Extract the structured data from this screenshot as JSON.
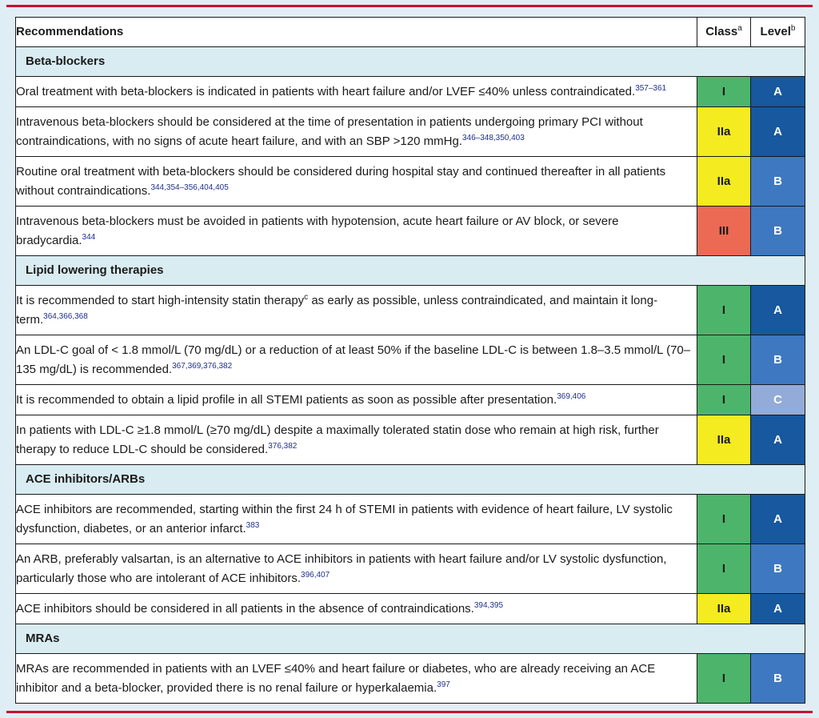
{
  "header": {
    "recommendations": "Recommendations",
    "class": "Class",
    "class_sup": "a",
    "level": "Level",
    "level_sup": "b"
  },
  "colors": {
    "class_I": "#4db46b",
    "class_IIa": "#f4eb21",
    "class_III": "#ec6a53",
    "level_A": "#17589e",
    "level_B": "#3e78c0",
    "level_C": "#93abd8",
    "section_bg": "#d9ecf2",
    "rule": "#c8102e"
  },
  "sections": [
    {
      "title": "Beta-blockers",
      "rows": [
        {
          "text": "Oral treatment with beta-blockers is indicated in patients with heart failure and/or LVEF ≤40% unless contraindicated.",
          "refs": "357–361",
          "class": "I",
          "level": "A"
        },
        {
          "text": "Intravenous beta-blockers should be considered at the time of presentation in patients undergoing primary PCI without contraindications, with no signs of acute heart failure, and with an SBP >120 mmHg.",
          "refs": "346–348,350,403",
          "class": "IIa",
          "level": "A"
        },
        {
          "text": "Routine oral treatment with beta-blockers should be considered during hospital stay and continued thereafter in all patients without contraindications.",
          "refs": "344,354–356,404,405",
          "class": "IIa",
          "level": "B"
        },
        {
          "text": "Intravenous beta-blockers must be avoided in patients with hypotension, acute heart failure or AV block, or severe bradycardia.",
          "refs": "344",
          "class": "III",
          "level": "B"
        }
      ]
    },
    {
      "title": "Lipid lowering therapies",
      "rows": [
        {
          "text_a": "It is recommended to start high-intensity statin therapy",
          "note": "c",
          "text_b": " as early as possible, unless contraindicated, and maintain it long-term.",
          "refs": "364,366,368",
          "class": "I",
          "level": "A"
        },
        {
          "text": "An LDL-C goal of < 1.8 mmol/L (70 mg/dL) or a reduction of at least 50% if the baseline LDL-C is between 1.8–3.5 mmol/L (70–135 mg/dL) is recommended.",
          "refs": "367,369,376,382",
          "class": "I",
          "level": "B"
        },
        {
          "text": "It is recommended to obtain a lipid profile in all STEMI patients as soon as possible after presentation.",
          "refs": "369,406",
          "class": "I",
          "level": "C"
        },
        {
          "text": "In patients with LDL-C ≥1.8 mmol/L (≥70 mg/dL) despite a maximally tolerated statin dose who remain at high risk, further therapy to reduce LDL-C should be considered.",
          "refs": "376,382",
          "class": "IIa",
          "level": "A"
        }
      ]
    },
    {
      "title": "ACE inhibitors/ARBs",
      "rows": [
        {
          "text": "ACE inhibitors are recommended, starting within the first 24 h of STEMI in patients with evidence of heart failure, LV systolic dysfunction, diabetes, or an anterior infarct.",
          "refs": "383",
          "class": "I",
          "level": "A"
        },
        {
          "text": "An ARB, preferably valsartan, is an alternative to ACE inhibitors in patients with heart failure and/or LV systolic dysfunction, particularly those who are intolerant of ACE inhibitors.",
          "refs": "396,407",
          "class": "I",
          "level": "B"
        },
        {
          "text": "ACE inhibitors should be considered in all patients in the absence of contraindications.",
          "refs": "394,395",
          "class": "IIa",
          "level": "A"
        }
      ]
    },
    {
      "title": "MRAs",
      "rows": [
        {
          "text": "MRAs are recommended in patients with an LVEF ≤40% and heart failure or diabetes, who are already receiving an ACE inhibitor and a beta-blocker, provided there is no renal failure or hyperkalaemia.",
          "refs": "397",
          "class": "I",
          "level": "B"
        }
      ]
    }
  ]
}
